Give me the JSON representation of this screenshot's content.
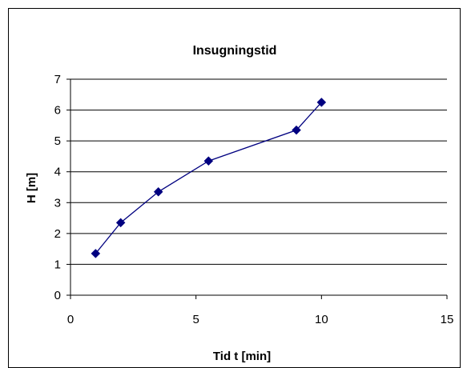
{
  "chart_data": {
    "type": "line",
    "title": "Insugningstid",
    "xlabel": "Tid t [min]",
    "ylabel": "H [m]",
    "xlim": [
      0,
      15
    ],
    "ylim": [
      0,
      7
    ],
    "xticks": [
      "0",
      "5",
      "10",
      "15"
    ],
    "yticks": [
      "0",
      "1",
      "2",
      "3",
      "4",
      "5",
      "6",
      "7"
    ],
    "grid": "horizontal",
    "legend": "none",
    "series": [
      {
        "color": "#000080",
        "marker": "diamond",
        "x": [
          1,
          2,
          3.5,
          5.5,
          9,
          10
        ],
        "y": [
          1.35,
          2.35,
          3.35,
          4.35,
          5.35,
          6.25
        ]
      }
    ]
  }
}
